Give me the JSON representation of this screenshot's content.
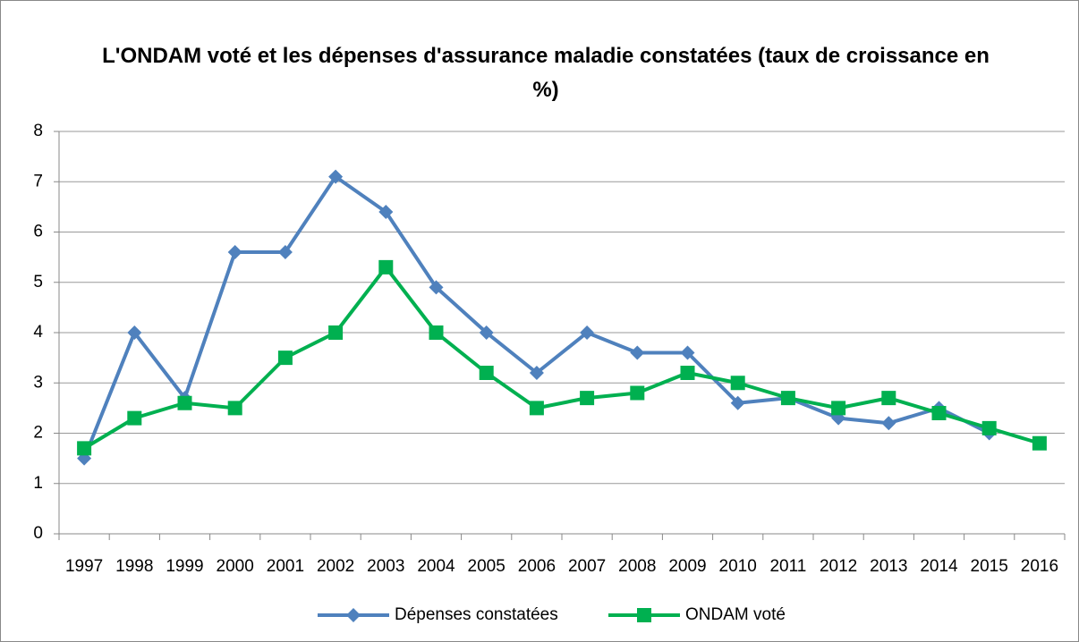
{
  "chart_data": {
    "type": "line",
    "title": "L'ONDAM voté et les dépenses d'assurance maladie constatées (taux de croissance en %)",
    "categories": [
      "1997",
      "1998",
      "1999",
      "2000",
      "2001",
      "2002",
      "2003",
      "2004",
      "2005",
      "2006",
      "2007",
      "2008",
      "2009",
      "2010",
      "2011",
      "2012",
      "2013",
      "2014",
      "2015",
      "2016"
    ],
    "series": [
      {
        "name": "Dépenses constatées",
        "color": "#4f81bd",
        "marker": "diamond",
        "values": [
          1.5,
          4.0,
          2.7,
          5.6,
          5.6,
          7.1,
          6.4,
          4.9,
          4.0,
          3.2,
          4.0,
          3.6,
          3.6,
          2.6,
          2.7,
          2.3,
          2.2,
          2.5,
          2.0,
          null
        ]
      },
      {
        "name": "ONDAM voté",
        "color": "#00b050",
        "marker": "square",
        "values": [
          1.7,
          2.3,
          2.6,
          2.5,
          3.5,
          4.0,
          5.3,
          4.0,
          3.2,
          2.5,
          2.7,
          2.8,
          3.2,
          3.0,
          2.7,
          2.5,
          2.7,
          2.4,
          2.1,
          1.8
        ]
      }
    ],
    "ylim": [
      0,
      8
    ],
    "yticks": [
      0,
      1,
      2,
      3,
      4,
      5,
      6,
      7,
      8
    ],
    "grid": true,
    "legend": "bottom"
  }
}
